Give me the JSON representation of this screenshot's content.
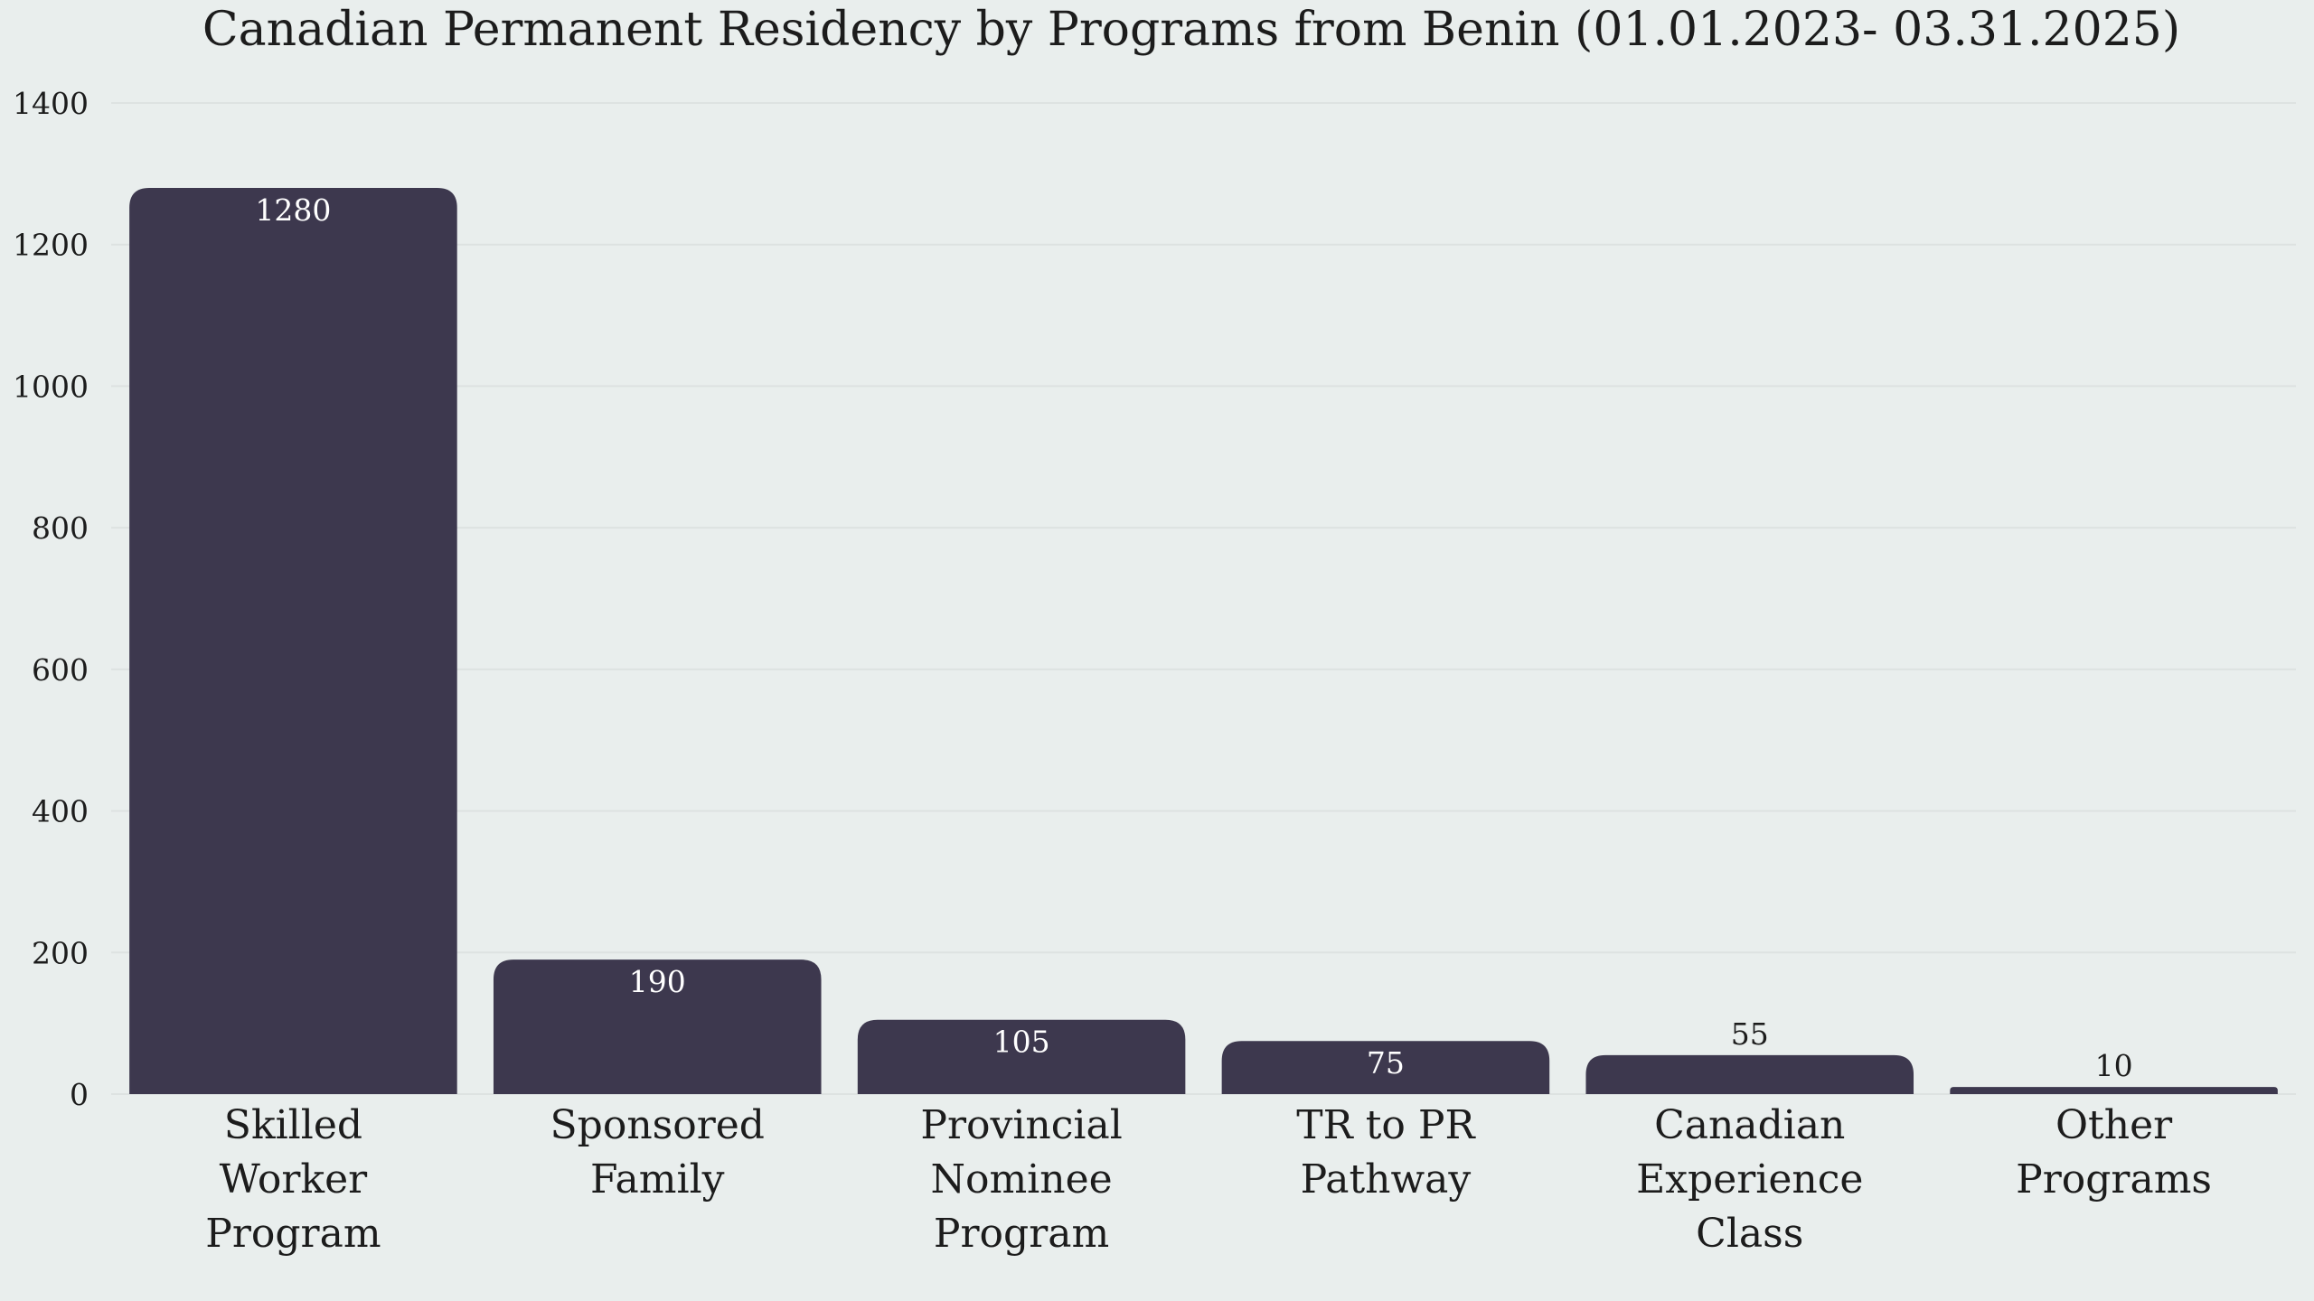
{
  "chart_data": {
    "type": "bar",
    "title": "Canadian Permanent Residency by Programs from Benin (01.01.2023- 03.31.2025)",
    "xlabel": "",
    "ylabel": "",
    "categories": [
      [
        "Skilled",
        "Worker",
        "Program"
      ],
      [
        "Sponsored",
        "Family"
      ],
      [
        "Provincial",
        "Nominee",
        "Program"
      ],
      [
        "TR to PR",
        "Pathway"
      ],
      [
        "Canadian",
        "Experience",
        "Class"
      ],
      [
        "Other",
        "Programs"
      ]
    ],
    "values": [
      1280,
      190,
      105,
      75,
      55,
      10
    ],
    "ylim": [
      0,
      1400
    ],
    "yticks": [
      0,
      200,
      400,
      600,
      800,
      1000,
      1200,
      1400
    ],
    "grid": true,
    "legend": "none",
    "colors": {
      "background": "#e9eeed",
      "bar": "#3d384e",
      "label_inside": "#ffffff",
      "label_outside": "#1c1c1c",
      "grid": "#dde2e1"
    }
  }
}
